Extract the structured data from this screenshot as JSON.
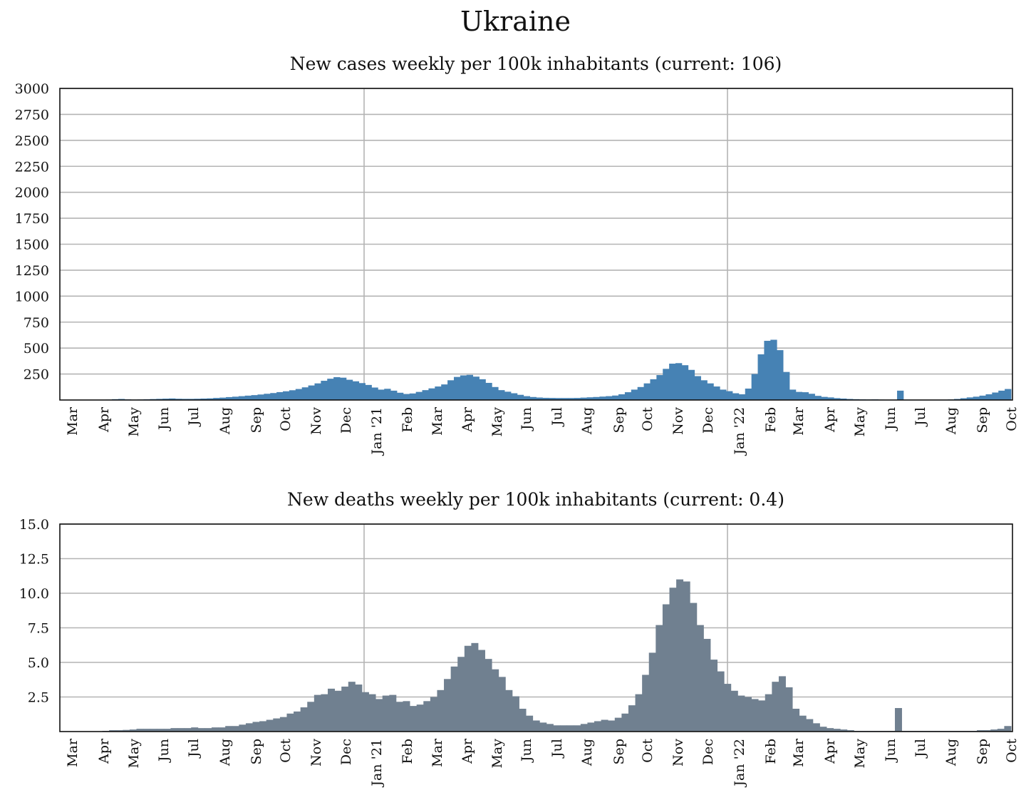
{
  "title": "Ukraine",
  "colors": {
    "cases": "#4682b4",
    "deaths": "#708090",
    "grid": "#b4b4b4",
    "axis": "#111111"
  },
  "chart_data": [
    {
      "type": "bar",
      "title": "New cases weekly per 100k inhabitants (current: 106)",
      "ylim": [
        0,
        3000
      ],
      "yticks": [
        "3000",
        "2750",
        "2500",
        "2250",
        "2000",
        "1750",
        "1500",
        "1250",
        "1000",
        "750",
        "500",
        "250"
      ],
      "ytick_values": [
        3000,
        2750,
        2500,
        2250,
        2000,
        1750,
        1500,
        1250,
        1000,
        750,
        500,
        250
      ],
      "grid": true,
      "year_lines": [
        "Jan '21",
        "Jan '22"
      ],
      "xticks": [
        "Mar",
        "Apr",
        "May",
        "Jun",
        "Jul",
        "Aug",
        "Sep",
        "Oct",
        "Nov",
        "Dec",
        "Jan '21",
        "Feb",
        "Mar",
        "Apr",
        "May",
        "Jun",
        "Jul",
        "Aug",
        "Sep",
        "Oct",
        "Nov",
        "Dec",
        "Jan '22",
        "Feb",
        "Mar",
        "Apr",
        "May",
        "Jun",
        "Jul",
        "Aug",
        "Sep",
        "Oct"
      ],
      "values": [
        0,
        0,
        0,
        0,
        1,
        2,
        3,
        4,
        8,
        10,
        6,
        4,
        5,
        7,
        9,
        11,
        13,
        15,
        12,
        11,
        11,
        12,
        14,
        16,
        20,
        23,
        28,
        32,
        37,
        42,
        47,
        53,
        60,
        67,
        76,
        84,
        94,
        106,
        122,
        140,
        160,
        185,
        205,
        220,
        215,
        195,
        180,
        163,
        145,
        120,
        100,
        108,
        90,
        70,
        58,
        63,
        78,
        95,
        112,
        130,
        150,
        190,
        222,
        237,
        242,
        225,
        200,
        165,
        125,
        95,
        80,
        65,
        50,
        37,
        29,
        24,
        21,
        20,
        19,
        19,
        19,
        20,
        23,
        26,
        29,
        33,
        37,
        43,
        55,
        75,
        100,
        125,
        160,
        200,
        240,
        300,
        350,
        355,
        335,
        290,
        230,
        190,
        160,
        130,
        100,
        85,
        65,
        55,
        110,
        250,
        440,
        570,
        580,
        480,
        270,
        100,
        78,
        75,
        60,
        40,
        30,
        25,
        18,
        14,
        10,
        8,
        6,
        5,
        6,
        4,
        3,
        3,
        90,
        2,
        2,
        2,
        2,
        2,
        2,
        3,
        5,
        10,
        17,
        25,
        32,
        42,
        55,
        72,
        90,
        106
      ]
    },
    {
      "type": "bar",
      "title": "New deaths weekly per 100k inhabitants (current: 0.4)",
      "ylim": [
        0,
        15
      ],
      "yticks": [
        "15.0",
        "12.5",
        "10.0",
        "7.5",
        "5.0",
        "2.5"
      ],
      "ytick_values": [
        15,
        12.5,
        10,
        7.5,
        5,
        2.5
      ],
      "grid": true,
      "year_lines": [
        "Jan '21",
        "Jan '22"
      ],
      "xticks": [
        "Mar",
        "Apr",
        "May",
        "Jun",
        "Jul",
        "Aug",
        "Sep",
        "Oct",
        "Nov",
        "Dec",
        "Jan '21",
        "Feb",
        "Mar",
        "Apr",
        "May",
        "Jun",
        "Jul",
        "Aug",
        "Sep",
        "Oct",
        "Nov",
        "Dec",
        "Jan '22",
        "Feb",
        "Mar",
        "Apr",
        "May",
        "Jun",
        "Jul",
        "Aug",
        "Sep",
        "Oct"
      ],
      "values": [
        0,
        0,
        0,
        0,
        0,
        0,
        0.05,
        0.1,
        0.1,
        0.12,
        0.15,
        0.2,
        0.2,
        0.2,
        0.2,
        0.2,
        0.25,
        0.25,
        0.25,
        0.3,
        0.25,
        0.25,
        0.3,
        0.3,
        0.4,
        0.4,
        0.5,
        0.6,
        0.7,
        0.75,
        0.85,
        0.95,
        1.05,
        1.3,
        1.45,
        1.75,
        2.15,
        2.65,
        2.7,
        3.1,
        2.95,
        3.25,
        3.6,
        3.4,
        2.85,
        2.7,
        2.35,
        2.6,
        2.65,
        2.15,
        2.2,
        1.85,
        1.95,
        2.2,
        2.5,
        3.0,
        3.8,
        4.7,
        5.4,
        6.2,
        6.4,
        5.9,
        5.25,
        4.5,
        3.95,
        3.0,
        2.55,
        1.65,
        1.15,
        0.8,
        0.65,
        0.55,
        0.45,
        0.45,
        0.45,
        0.45,
        0.55,
        0.65,
        0.75,
        0.85,
        0.8,
        1.0,
        1.3,
        1.9,
        2.7,
        4.1,
        5.7,
        7.7,
        9.2,
        10.4,
        11.0,
        10.85,
        9.3,
        7.7,
        6.7,
        5.2,
        4.35,
        3.45,
        2.95,
        2.6,
        2.5,
        2.35,
        2.25,
        2.7,
        3.6,
        4.0,
        3.2,
        1.65,
        1.15,
        0.9,
        0.6,
        0.35,
        0.25,
        0.2,
        0.15,
        0.1,
        0.05,
        0.05,
        0.05,
        0.05,
        0.05,
        0.05,
        1.7,
        0.05,
        0.05,
        0.05,
        0.05,
        0.05,
        0.05,
        0.05,
        0.05,
        0.05,
        0.05,
        0.05,
        0.1,
        0.1,
        0.15,
        0.2,
        0.4
      ]
    }
  ]
}
